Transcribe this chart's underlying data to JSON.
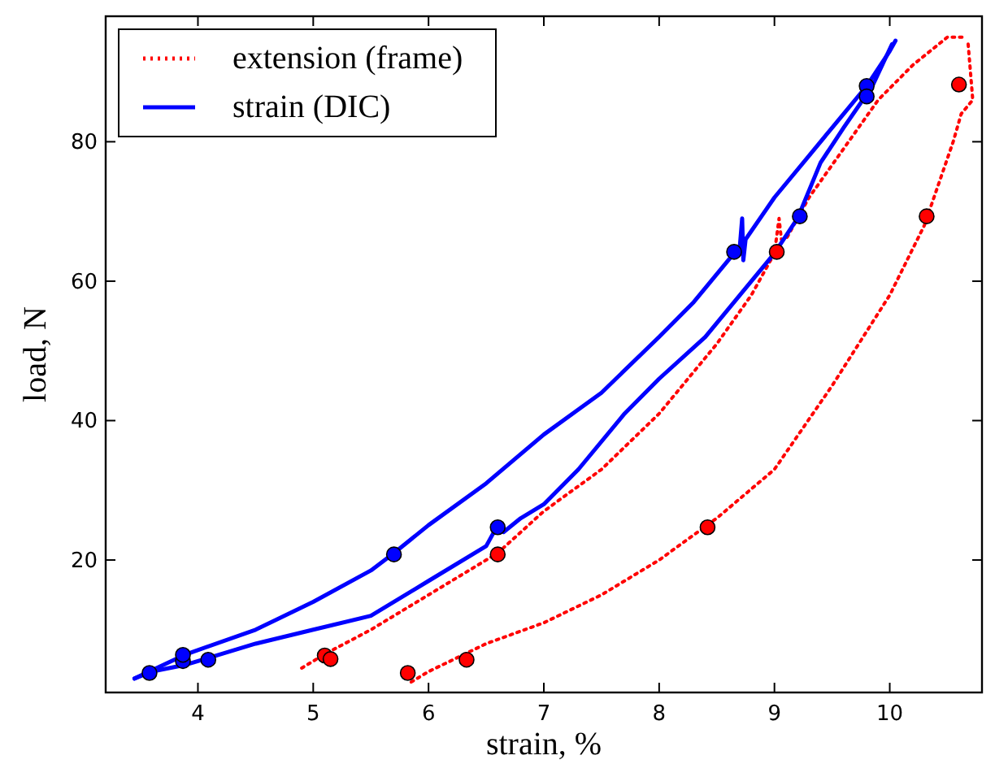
{
  "chart_data": {
    "type": "line",
    "xlabel": "strain, %",
    "ylabel": "load, N",
    "xlim": [
      3.2,
      10.8
    ],
    "ylim": [
      1,
      98
    ],
    "xticks": [
      4,
      5,
      6,
      7,
      8,
      9,
      10
    ],
    "yticks": [
      20,
      40,
      60,
      80
    ],
    "grid": false,
    "legend": "top left",
    "series": [
      {
        "name": "extension (frame)",
        "color": "#ff0000",
        "line_style": "dotted",
        "x": [
          4.9,
          5.1,
          5.5,
          6,
          6.6,
          7,
          7.5,
          8,
          8.5,
          8.8,
          9.0,
          9.04,
          9.06,
          9.1,
          9.3,
          9.6,
          9.9,
          10.2,
          10.5,
          10.65
        ],
        "values": [
          4.5,
          6.5,
          10,
          15,
          21,
          27,
          33,
          41,
          51,
          58,
          64,
          69,
          66,
          66,
          72,
          79,
          86,
          91,
          95,
          95
        ]
      },
      {
        "color": "#ff0000",
        "line_style": "dotted",
        "x": [
          5.85,
          6,
          6.5,
          7,
          7.5,
          8,
          8.5,
          9,
          9.5,
          10,
          10.3,
          10.55,
          10.62,
          10.72,
          10.68
        ],
        "values": [
          2.5,
          4,
          8,
          11,
          15,
          20,
          26,
          33,
          45,
          58,
          68,
          80,
          84,
          86,
          94
        ]
      },
      {
        "name": "strain (DIC)",
        "color": "#0000ff",
        "line_style": "solid",
        "x": [
          3.45,
          3.9,
          4.5,
          5,
          5.5,
          5.7,
          6,
          6.5,
          7,
          7.5,
          8,
          8.3,
          8.6,
          8.7,
          8.72,
          8.73,
          8.75,
          9,
          9.3,
          9.6,
          9.8,
          10,
          10.05
        ],
        "values": [
          3,
          6.5,
          10,
          14,
          18.5,
          21,
          25,
          31,
          38,
          44,
          52,
          57,
          63,
          65,
          69,
          63,
          66,
          72,
          78,
          84,
          88,
          93,
          94.5
        ]
      },
      {
        "color": "#0000ff",
        "line_style": "solid",
        "x": [
          3.45,
          3.6,
          3.9,
          4.1,
          4.5,
          5,
          5.5,
          6,
          6.5,
          6.6,
          6.65,
          6.8,
          7,
          7.3,
          7.7,
          8,
          8.4,
          8.7,
          9,
          9.2,
          9.4,
          9.6,
          9.85,
          10.02
        ],
        "values": [
          3,
          4,
          5,
          6,
          8,
          10,
          12,
          17,
          22,
          25,
          24,
          26,
          28,
          33,
          41,
          46,
          52,
          58,
          64,
          69,
          77,
          82,
          88,
          94
        ]
      },
      {
        "type": "scatter",
        "marker": "circle",
        "color": "#0000ff",
        "x": [
          3.58,
          3.87,
          3.87,
          4.09,
          5.7,
          6.6,
          8.65,
          9.22,
          9.8,
          9.8
        ],
        "values": [
          3.8,
          5.5,
          6.4,
          5.7,
          20.8,
          24.7,
          64.2,
          69.3,
          88,
          86.5
        ]
      },
      {
        "type": "scatter",
        "marker": "circle",
        "color": "#ff0000",
        "x": [
          5.1,
          5.15,
          5.82,
          6.33,
          6.6,
          8.42,
          9.02,
          10.32,
          10.6
        ],
        "values": [
          6.3,
          5.8,
          3.8,
          5.7,
          20.8,
          24.7,
          64.2,
          69.3,
          88.2
        ]
      }
    ]
  }
}
